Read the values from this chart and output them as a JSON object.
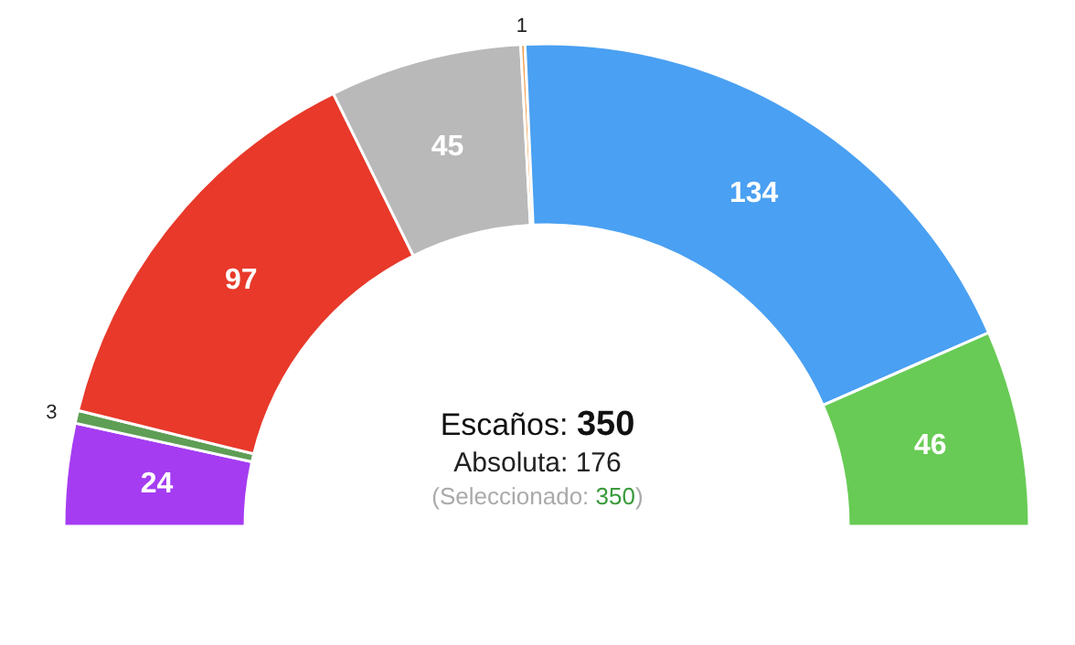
{
  "chart_data": {
    "type": "donut",
    "categories": [
      null,
      null,
      null,
      null,
      null,
      null,
      null
    ],
    "values": [
      24,
      3,
      97,
      45,
      1,
      134,
      46
    ],
    "colors": [
      "#a53cf2",
      "#5f9e55",
      "#e8392a",
      "#b9b9b9",
      "#f0a050",
      "#4aa0f2",
      "#68cb55"
    ],
    "data_labels": true,
    "annotations": [
      "Escaños: 350",
      "Absoluta: 176",
      "(Seleccionado: 350)"
    ]
  }
}
